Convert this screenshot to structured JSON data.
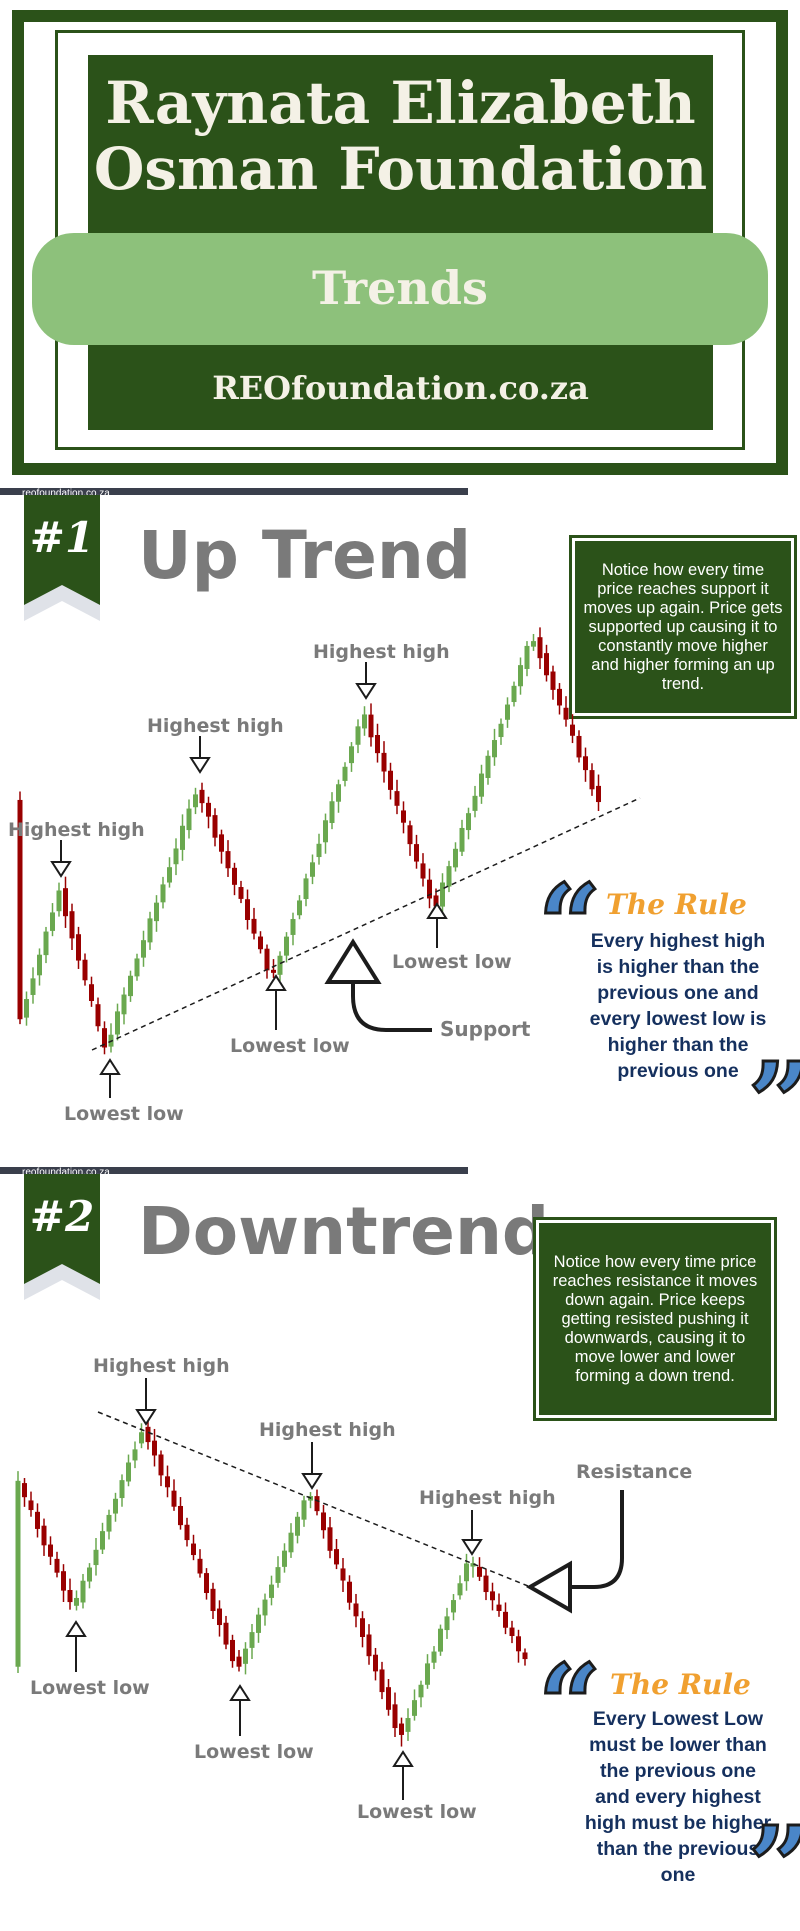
{
  "header": {
    "title_line1": "Raynata Elizabeth",
    "title_line2": "Osman Foundation",
    "subtitle": "Trends",
    "website": "REOfoundation.co.za"
  },
  "sections": [
    {
      "watermark": "reofoundation.co.za",
      "number": "#1",
      "title": "Up Trend",
      "note": "Notice how every time price reaches support it moves up again. Price gets supported up causing it to constantly move higher and higher forming an up trend.",
      "labels": {
        "highest_high": "Highest high",
        "lowest_low": "Lowest low",
        "support": "Support"
      },
      "rule_title": "The Rule",
      "rule_text": "Every highest high is higher than the previous one and every lowest low is higher than the previous one"
    },
    {
      "watermark": "reofoundation.co.za",
      "number": "#2",
      "title": "Downtrend",
      "note": "Notice how every time price reaches resistance it moves down again. Price keeps getting resisted pushing it downwards, causing it to move lower and lower forming a down trend.",
      "labels": {
        "highest_high": "Highest high",
        "lowest_low": "Lowest low",
        "resistance": "Resistance"
      },
      "rule_title": "The Rule",
      "rule_text": "Every Lowest Low must be lower than the previous one and every highest high must be higher than the previous one"
    }
  ],
  "colors": {
    "dark_green": "#2b5219",
    "light_green": "#8dc17b",
    "candle_up": "#6aa84f",
    "candle_down": "#990000",
    "label_gray": "#7a7a7a",
    "rule_orange": "#f0a030",
    "rule_blue": "#15305e"
  }
}
